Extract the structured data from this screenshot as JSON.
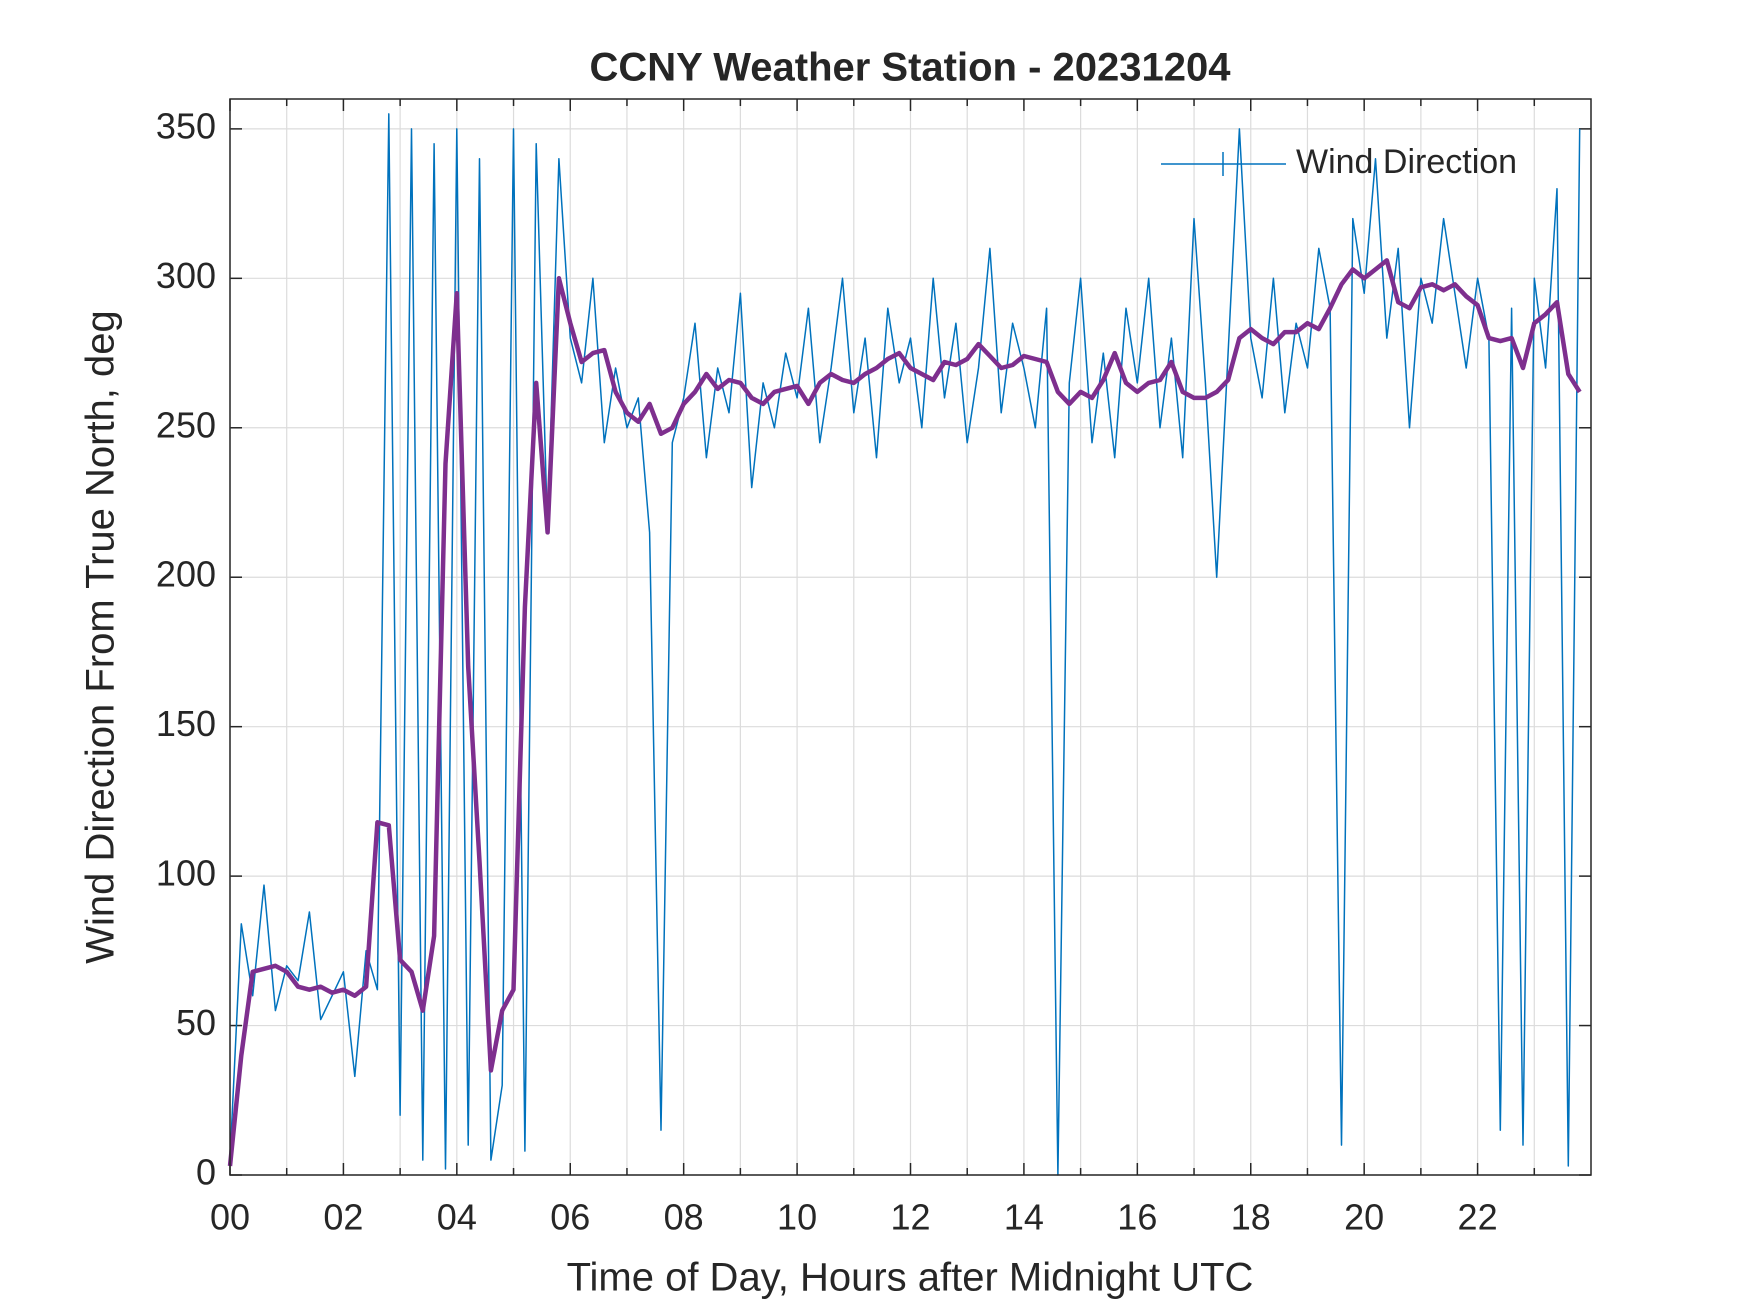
{
  "chart_data": {
    "type": "line",
    "title": "CCNY Weather Station - 20231204",
    "x_label": "Time of Day, Hours after Midnight UTC",
    "y_label": "Wind Direction From True North, deg",
    "x": [
      0,
      0.2,
      0.4,
      0.6,
      0.8,
      1,
      1.2,
      1.4,
      1.6,
      1.8,
      2,
      2.2,
      2.4,
      2.6,
      2.8,
      3,
      3.2,
      3.4,
      3.6,
      3.8,
      4,
      4.2,
      4.4,
      4.6,
      4.8,
      5,
      5.2,
      5.4,
      5.6,
      5.8,
      6,
      6.2,
      6.4,
      6.6,
      6.8,
      7,
      7.2,
      7.4,
      7.6,
      7.8,
      8,
      8.2,
      8.4,
      8.6,
      8.8,
      9,
      9.2,
      9.4,
      9.6,
      9.8,
      10,
      10.2,
      10.4,
      10.6,
      10.8,
      11,
      11.2,
      11.4,
      11.6,
      11.8,
      12,
      12.2,
      12.4,
      12.6,
      12.8,
      13,
      13.2,
      13.4,
      13.6,
      13.8,
      14,
      14.2,
      14.4,
      14.6,
      14.8,
      15,
      15.2,
      15.4,
      15.6,
      15.8,
      16,
      16.2,
      16.4,
      16.6,
      16.8,
      17,
      17.2,
      17.4,
      17.6,
      17.8,
      18,
      18.2,
      18.4,
      18.6,
      18.8,
      19,
      19.2,
      19.4,
      19.6,
      19.8,
      20,
      20.2,
      20.4,
      20.6,
      20.8,
      21,
      21.2,
      21.4,
      21.6,
      21.8,
      22,
      22.2,
      22.4,
      22.6,
      22.8,
      23,
      23.2,
      23.4,
      23.6,
      23.8
    ],
    "series": [
      {
        "name": "Wind Direction",
        "color": "#0072bd",
        "width": 1.5,
        "values": [
          5,
          84,
          60,
          97,
          55,
          70,
          65,
          88,
          52,
          60,
          68,
          33,
          75,
          62,
          355,
          20,
          350,
          5,
          345,
          2,
          350,
          10,
          340,
          5,
          30,
          350,
          8,
          345,
          215,
          340,
          280,
          265,
          300,
          245,
          270,
          250,
          260,
          215,
          15,
          245,
          260,
          285,
          240,
          270,
          255,
          295,
          230,
          265,
          250,
          275,
          260,
          290,
          245,
          270,
          300,
          255,
          280,
          240,
          290,
          265,
          280,
          250,
          300,
          260,
          285,
          245,
          270,
          310,
          255,
          285,
          270,
          250,
          290,
          0,
          265,
          300,
          245,
          275,
          240,
          290,
          265,
          300,
          250,
          280,
          240,
          320,
          265,
          200,
          275,
          350,
          280,
          260,
          300,
          255,
          285,
          270,
          310,
          290,
          10,
          320,
          295,
          340,
          280,
          310,
          250,
          300,
          285,
          320,
          295,
          270,
          300,
          280,
          15,
          290,
          10,
          300,
          270,
          330,
          3,
          350
        ]
      },
      {
        "color": "#7e2f8e",
        "width": 4.5,
        "values": [
          3,
          40,
          68,
          69,
          70,
          68,
          63,
          62,
          63,
          61,
          62,
          60,
          63,
          118,
          117,
          72,
          68,
          55,
          80,
          238,
          295,
          170,
          105,
          35,
          55,
          62,
          190,
          265,
          215,
          300,
          285,
          272,
          275,
          276,
          262,
          255,
          252,
          258,
          248,
          250,
          258,
          262,
          268,
          263,
          266,
          265,
          260,
          258,
          262,
          263,
          264,
          258,
          265,
          268,
          266,
          265,
          268,
          270,
          273,
          275,
          270,
          268,
          266,
          272,
          271,
          273,
          278,
          274,
          270,
          271,
          274,
          273,
          272,
          262,
          258,
          262,
          260,
          266,
          275,
          265,
          262,
          265,
          266,
          272,
          262,
          260,
          260,
          262,
          266,
          280,
          283,
          280,
          278,
          282,
          282,
          285,
          283,
          290,
          298,
          303,
          300,
          303,
          306,
          292,
          290,
          297,
          298,
          296,
          298,
          294,
          291,
          280,
          279,
          280,
          270,
          285,
          288,
          292,
          268,
          262
        ]
      }
    ],
    "xlim": [
      0,
      24
    ],
    "ylim": [
      0,
      360
    ],
    "xticks": [
      {
        "value": 0,
        "label": "00"
      },
      {
        "value": 2,
        "label": "02"
      },
      {
        "value": 4,
        "label": "04"
      },
      {
        "value": 6,
        "label": "06"
      },
      {
        "value": 8,
        "label": "08"
      },
      10,
      12,
      14,
      16,
      18,
      20,
      22
    ],
    "xminorticks": [
      1,
      3,
      5,
      7,
      9,
      11,
      13,
      15,
      17,
      19,
      21,
      23
    ],
    "yticks": [
      0,
      50,
      100,
      150,
      200,
      250,
      300,
      350
    ],
    "grid": true,
    "legend": "northeast"
  }
}
